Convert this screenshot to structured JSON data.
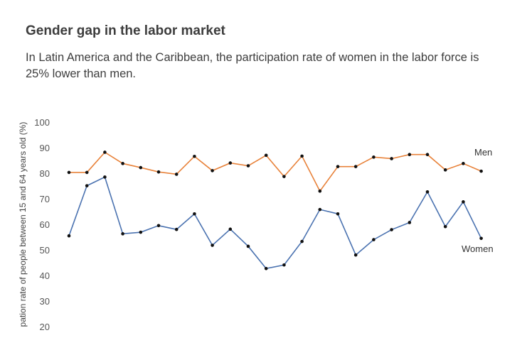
{
  "header": {
    "title": "Gender gap in the labor market",
    "subtitle": "In Latin America and the Caribbean, the participation rate of women in the labor force is 25% lower than men."
  },
  "chart_data": {
    "type": "line",
    "title": "Gender gap in the labor market",
    "ylabel": "pation rate of people between 15 and 64 years old (%)",
    "ylim": [
      20,
      100
    ],
    "yticks": [
      100,
      90,
      80,
      70,
      60,
      50,
      40,
      30,
      20
    ],
    "grid": false,
    "series": [
      {
        "name": "Men",
        "color": "#e8823a",
        "values": [
          80.3,
          80.3,
          88.2,
          83.8,
          82.2,
          80.5,
          79.6,
          86.6,
          81.0,
          84.0,
          82.9,
          87.0,
          78.7,
          86.7,
          73.0,
          82.6,
          82.6,
          86.3,
          85.7,
          87.3,
          87.3,
          81.3,
          83.8,
          80.8
        ]
      },
      {
        "name": "Women",
        "color": "#4a72b0",
        "values": [
          55.5,
          75.1,
          78.5,
          56.3,
          56.9,
          59.5,
          58.0,
          64.1,
          51.8,
          58.1,
          51.4,
          42.7,
          44.1,
          53.3,
          65.8,
          64.1,
          48.0,
          54.0,
          57.9,
          60.7,
          72.7,
          59.1,
          68.8,
          54.5
        ]
      }
    ]
  }
}
